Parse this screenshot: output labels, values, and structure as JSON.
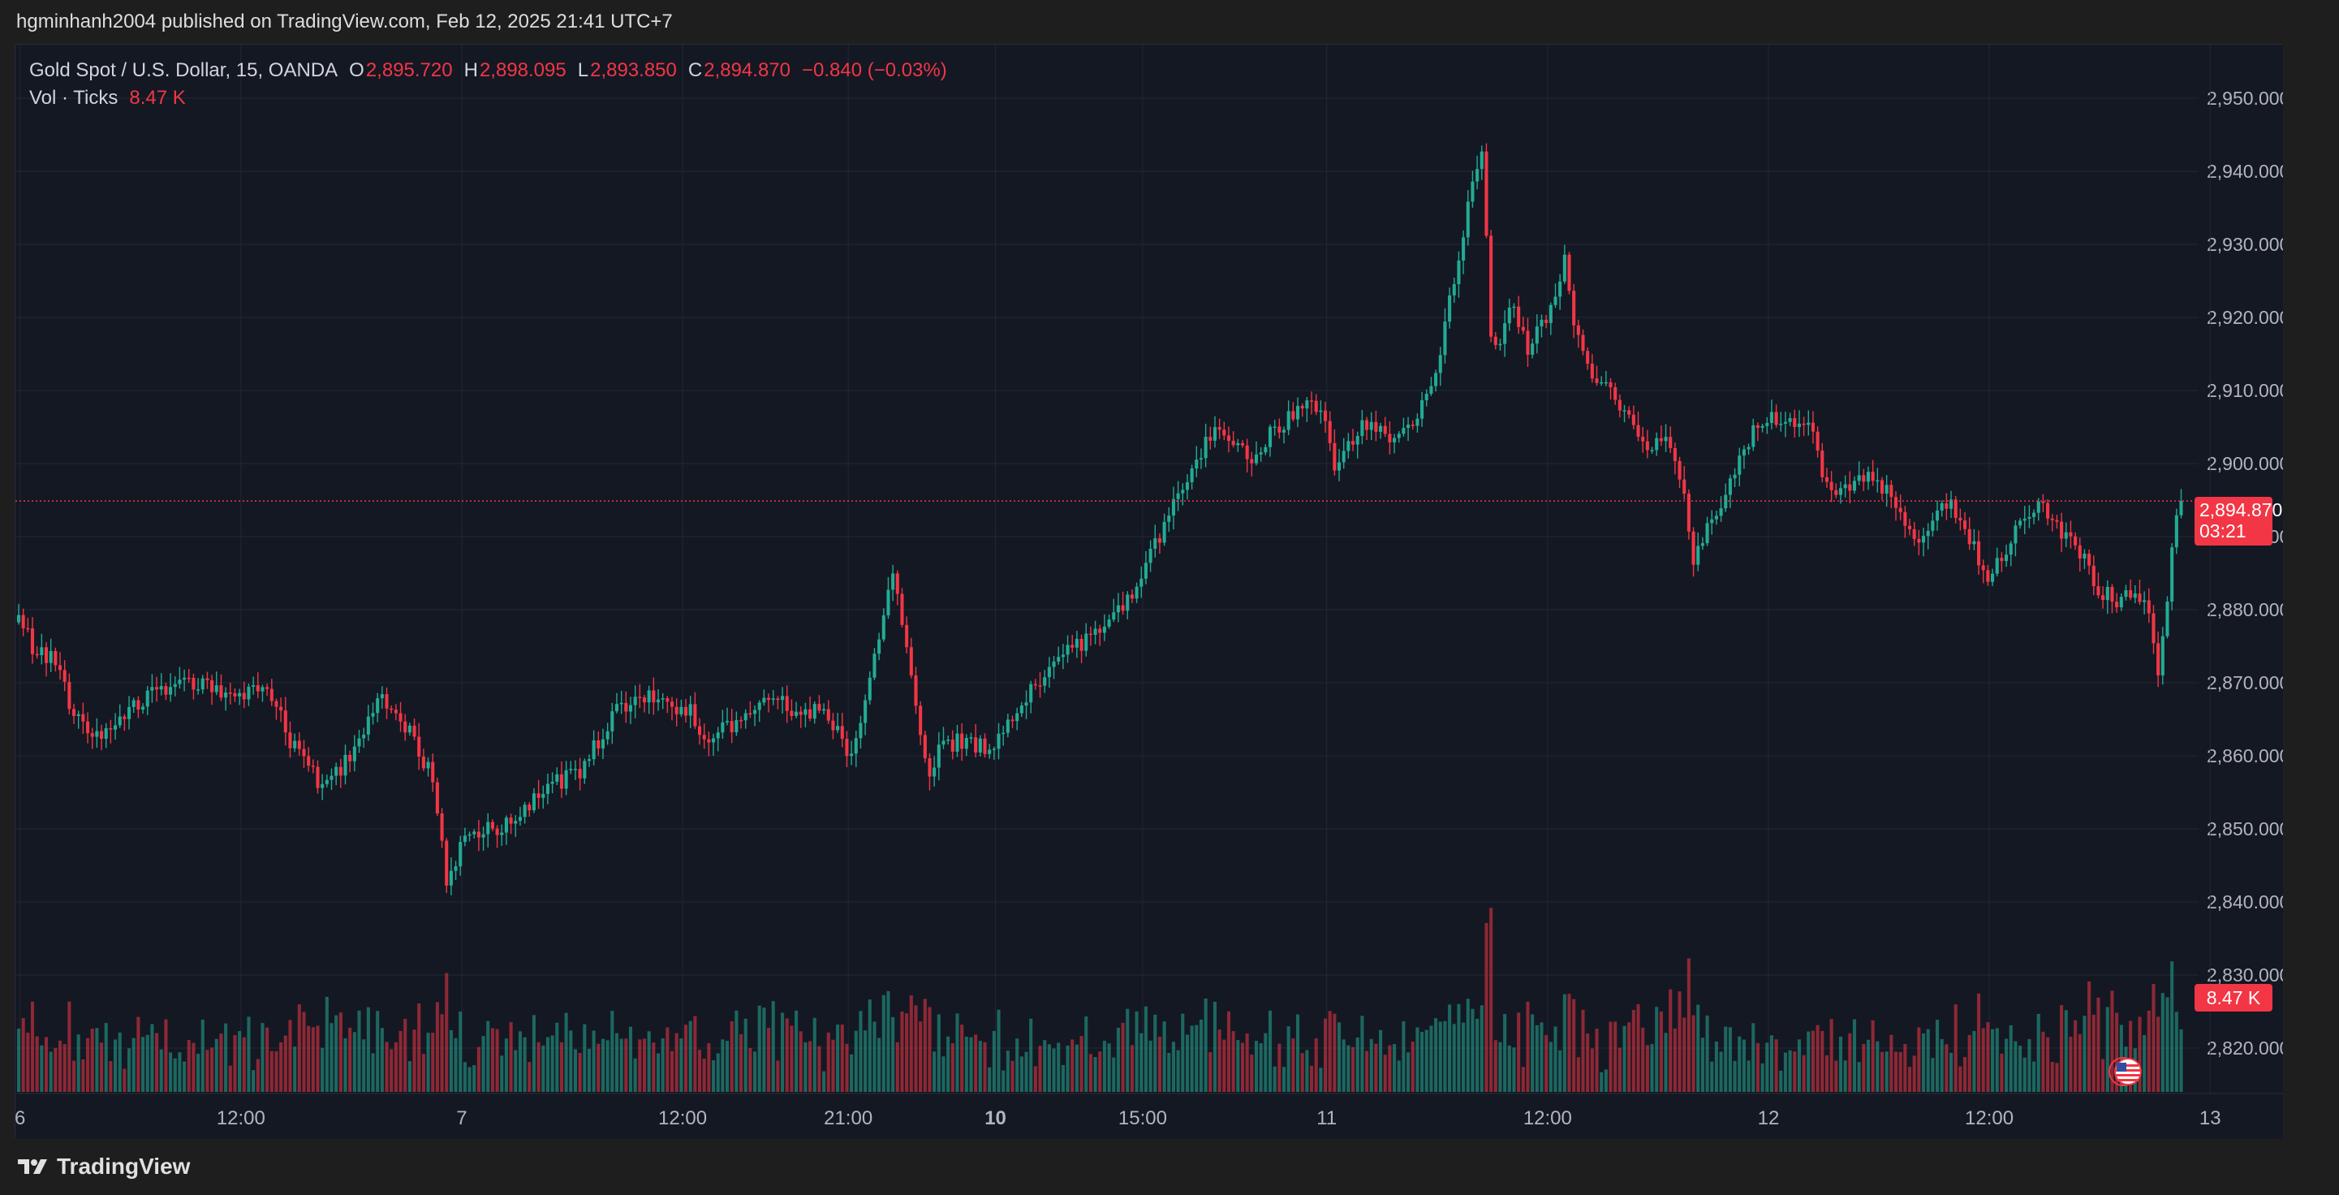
{
  "header": {
    "publish_text": "hgminhanh2004 published on TradingView.com, Feb 12, 2025 21:41 UTC+7"
  },
  "legend": {
    "symbol": "Gold Spot / U.S. Dollar, 15, OANDA",
    "o_label": "O",
    "o_value": "2,895.720",
    "h_label": "H",
    "h_value": "2,898.095",
    "l_label": "L",
    "l_value": "2,893.850",
    "c_label": "C",
    "c_value": "2,894.870",
    "change": "−0.840 (−0.03%)",
    "vol_label": "Vol · Ticks",
    "vol_value": "8.47 K"
  },
  "badges": {
    "price": "2,894.870",
    "countdown": "03:21",
    "volume": "8.47 K"
  },
  "footer": {
    "brand": "TradingView"
  },
  "colors": {
    "up": "#22ab94",
    "down": "#f23645",
    "background": "#141823",
    "grid": "#232733",
    "axis_text": "#b2b5be"
  },
  "icons": {
    "logo": "tradingview-logo-icon",
    "flag": "us-flag-icon"
  },
  "chart_data": {
    "type": "candlestick",
    "interval": "15",
    "y_ticks": [
      2820,
      2830,
      2840,
      2850,
      2860,
      2870,
      2880,
      2890,
      2900,
      2910,
      2920,
      2930,
      2940,
      2950
    ],
    "y_tick_labels": [
      "2,820.000",
      "2,830.000",
      "2,840.000",
      "2,850.000",
      "2,860.000",
      "2,870.000",
      "2,880.000",
      "2,890.000",
      "2,900.000",
      "2,910.000",
      "2,920.000",
      "2,930.000",
      "2,940.000",
      "2,950.000"
    ],
    "ylim": [
      2815,
      2957
    ],
    "last_price": 2894.87,
    "x_ticks": [
      {
        "label": "6",
        "bold": false,
        "pos": 0.3
      },
      {
        "label": "12:00",
        "bold": false,
        "pos": 48.3
      },
      {
        "label": "7",
        "bold": false,
        "pos": 96.3
      },
      {
        "label": "12:00",
        "bold": false,
        "pos": 144.3
      },
      {
        "label": "21:00",
        "bold": false,
        "pos": 180.3
      },
      {
        "label": "10",
        "bold": true,
        "pos": 212.3
      },
      {
        "label": "15:00",
        "bold": false,
        "pos": 244.3
      },
      {
        "label": "11",
        "bold": false,
        "pos": 284.3
      },
      {
        "label": "12:00",
        "bold": false,
        "pos": 332.3
      },
      {
        "label": "12",
        "bold": false,
        "pos": 380.3
      },
      {
        "label": "12:00",
        "bold": false,
        "pos": 428.3
      },
      {
        "label": "13",
        "bold": false,
        "pos": 476.3
      }
    ],
    "price_path": [
      [
        0,
        2879
      ],
      [
        3,
        2875
      ],
      [
        8,
        2873
      ],
      [
        12,
        2865
      ],
      [
        17,
        2863
      ],
      [
        22,
        2865
      ],
      [
        28,
        2868
      ],
      [
        34,
        2870
      ],
      [
        40,
        2870
      ],
      [
        46,
        2868
      ],
      [
        52,
        2869
      ],
      [
        57,
        2867
      ],
      [
        58,
        2863
      ],
      [
        62,
        2859
      ],
      [
        66,
        2856
      ],
      [
        70,
        2858
      ],
      [
        74,
        2862
      ],
      [
        78,
        2868
      ],
      [
        82,
        2866
      ],
      [
        86,
        2862
      ],
      [
        89,
        2858
      ],
      [
        91,
        2853
      ],
      [
        93,
        2842
      ],
      [
        96,
        2848
      ],
      [
        100,
        2850
      ],
      [
        104,
        2850
      ],
      [
        110,
        2853
      ],
      [
        116,
        2856
      ],
      [
        122,
        2858
      ],
      [
        126,
        2862
      ],
      [
        130,
        2866
      ],
      [
        136,
        2868
      ],
      [
        142,
        2867
      ],
      [
        146,
        2866
      ],
      [
        150,
        2862
      ],
      [
        154,
        2864
      ],
      [
        158,
        2865
      ],
      [
        164,
        2868
      ],
      [
        168,
        2866
      ],
      [
        174,
        2866
      ],
      [
        178,
        2864
      ],
      [
        180,
        2860
      ],
      [
        182,
        2862
      ],
      [
        185,
        2870
      ],
      [
        188,
        2880
      ],
      [
        190,
        2884
      ],
      [
        192,
        2878
      ],
      [
        194,
        2870
      ],
      [
        196,
        2862
      ],
      [
        198,
        2858
      ],
      [
        200,
        2861
      ],
      [
        204,
        2862
      ],
      [
        210,
        2861
      ],
      [
        214,
        2863
      ],
      [
        218,
        2868
      ],
      [
        222,
        2870
      ],
      [
        226,
        2873
      ],
      [
        232,
        2876
      ],
      [
        236,
        2878
      ],
      [
        240,
        2880
      ],
      [
        244,
        2885
      ],
      [
        248,
        2890
      ],
      [
        252,
        2896
      ],
      [
        256,
        2901
      ],
      [
        260,
        2904
      ],
      [
        264,
        2903
      ],
      [
        268,
        2900
      ],
      [
        272,
        2904
      ],
      [
        276,
        2906
      ],
      [
        280,
        2909
      ],
      [
        284,
        2906
      ],
      [
        286,
        2900
      ],
      [
        288,
        2902
      ],
      [
        292,
        2905
      ],
      [
        296,
        2904
      ],
      [
        300,
        2903
      ],
      [
        304,
        2906
      ],
      [
        306,
        2910
      ],
      [
        308,
        2912
      ],
      [
        310,
        2920
      ],
      [
        312,
        2925
      ],
      [
        314,
        2932
      ],
      [
        316,
        2938
      ],
      [
        318,
        2942
      ],
      [
        320,
        2918
      ],
      [
        322,
        2916
      ],
      [
        324,
        2922
      ],
      [
        328,
        2916
      ],
      [
        332,
        2920
      ],
      [
        336,
        2928
      ],
      [
        338,
        2920
      ],
      [
        342,
        2912
      ],
      [
        346,
        2910
      ],
      [
        350,
        2906
      ],
      [
        354,
        2903
      ],
      [
        358,
        2903
      ],
      [
        360,
        2900
      ],
      [
        362,
        2896
      ],
      [
        364,
        2886
      ],
      [
        366,
        2890
      ],
      [
        370,
        2895
      ],
      [
        374,
        2900
      ],
      [
        378,
        2906
      ],
      [
        382,
        2906
      ],
      [
        386,
        2906
      ],
      [
        390,
        2904
      ],
      [
        392,
        2898
      ],
      [
        394,
        2896
      ],
      [
        398,
        2897
      ],
      [
        402,
        2899
      ],
      [
        406,
        2896
      ],
      [
        410,
        2892
      ],
      [
        414,
        2889
      ],
      [
        418,
        2894
      ],
      [
        420,
        2895
      ],
      [
        422,
        2892
      ],
      [
        426,
        2887
      ],
      [
        428,
        2885
      ],
      [
        432,
        2888
      ],
      [
        436,
        2893
      ],
      [
        440,
        2894
      ],
      [
        444,
        2890
      ],
      [
        448,
        2888
      ],
      [
        452,
        2883
      ],
      [
        456,
        2881
      ],
      [
        460,
        2883
      ],
      [
        463,
        2880
      ],
      [
        465,
        2872
      ],
      [
        467,
        2882
      ],
      [
        469,
        2893
      ],
      [
        470,
        2895
      ]
    ]
  }
}
